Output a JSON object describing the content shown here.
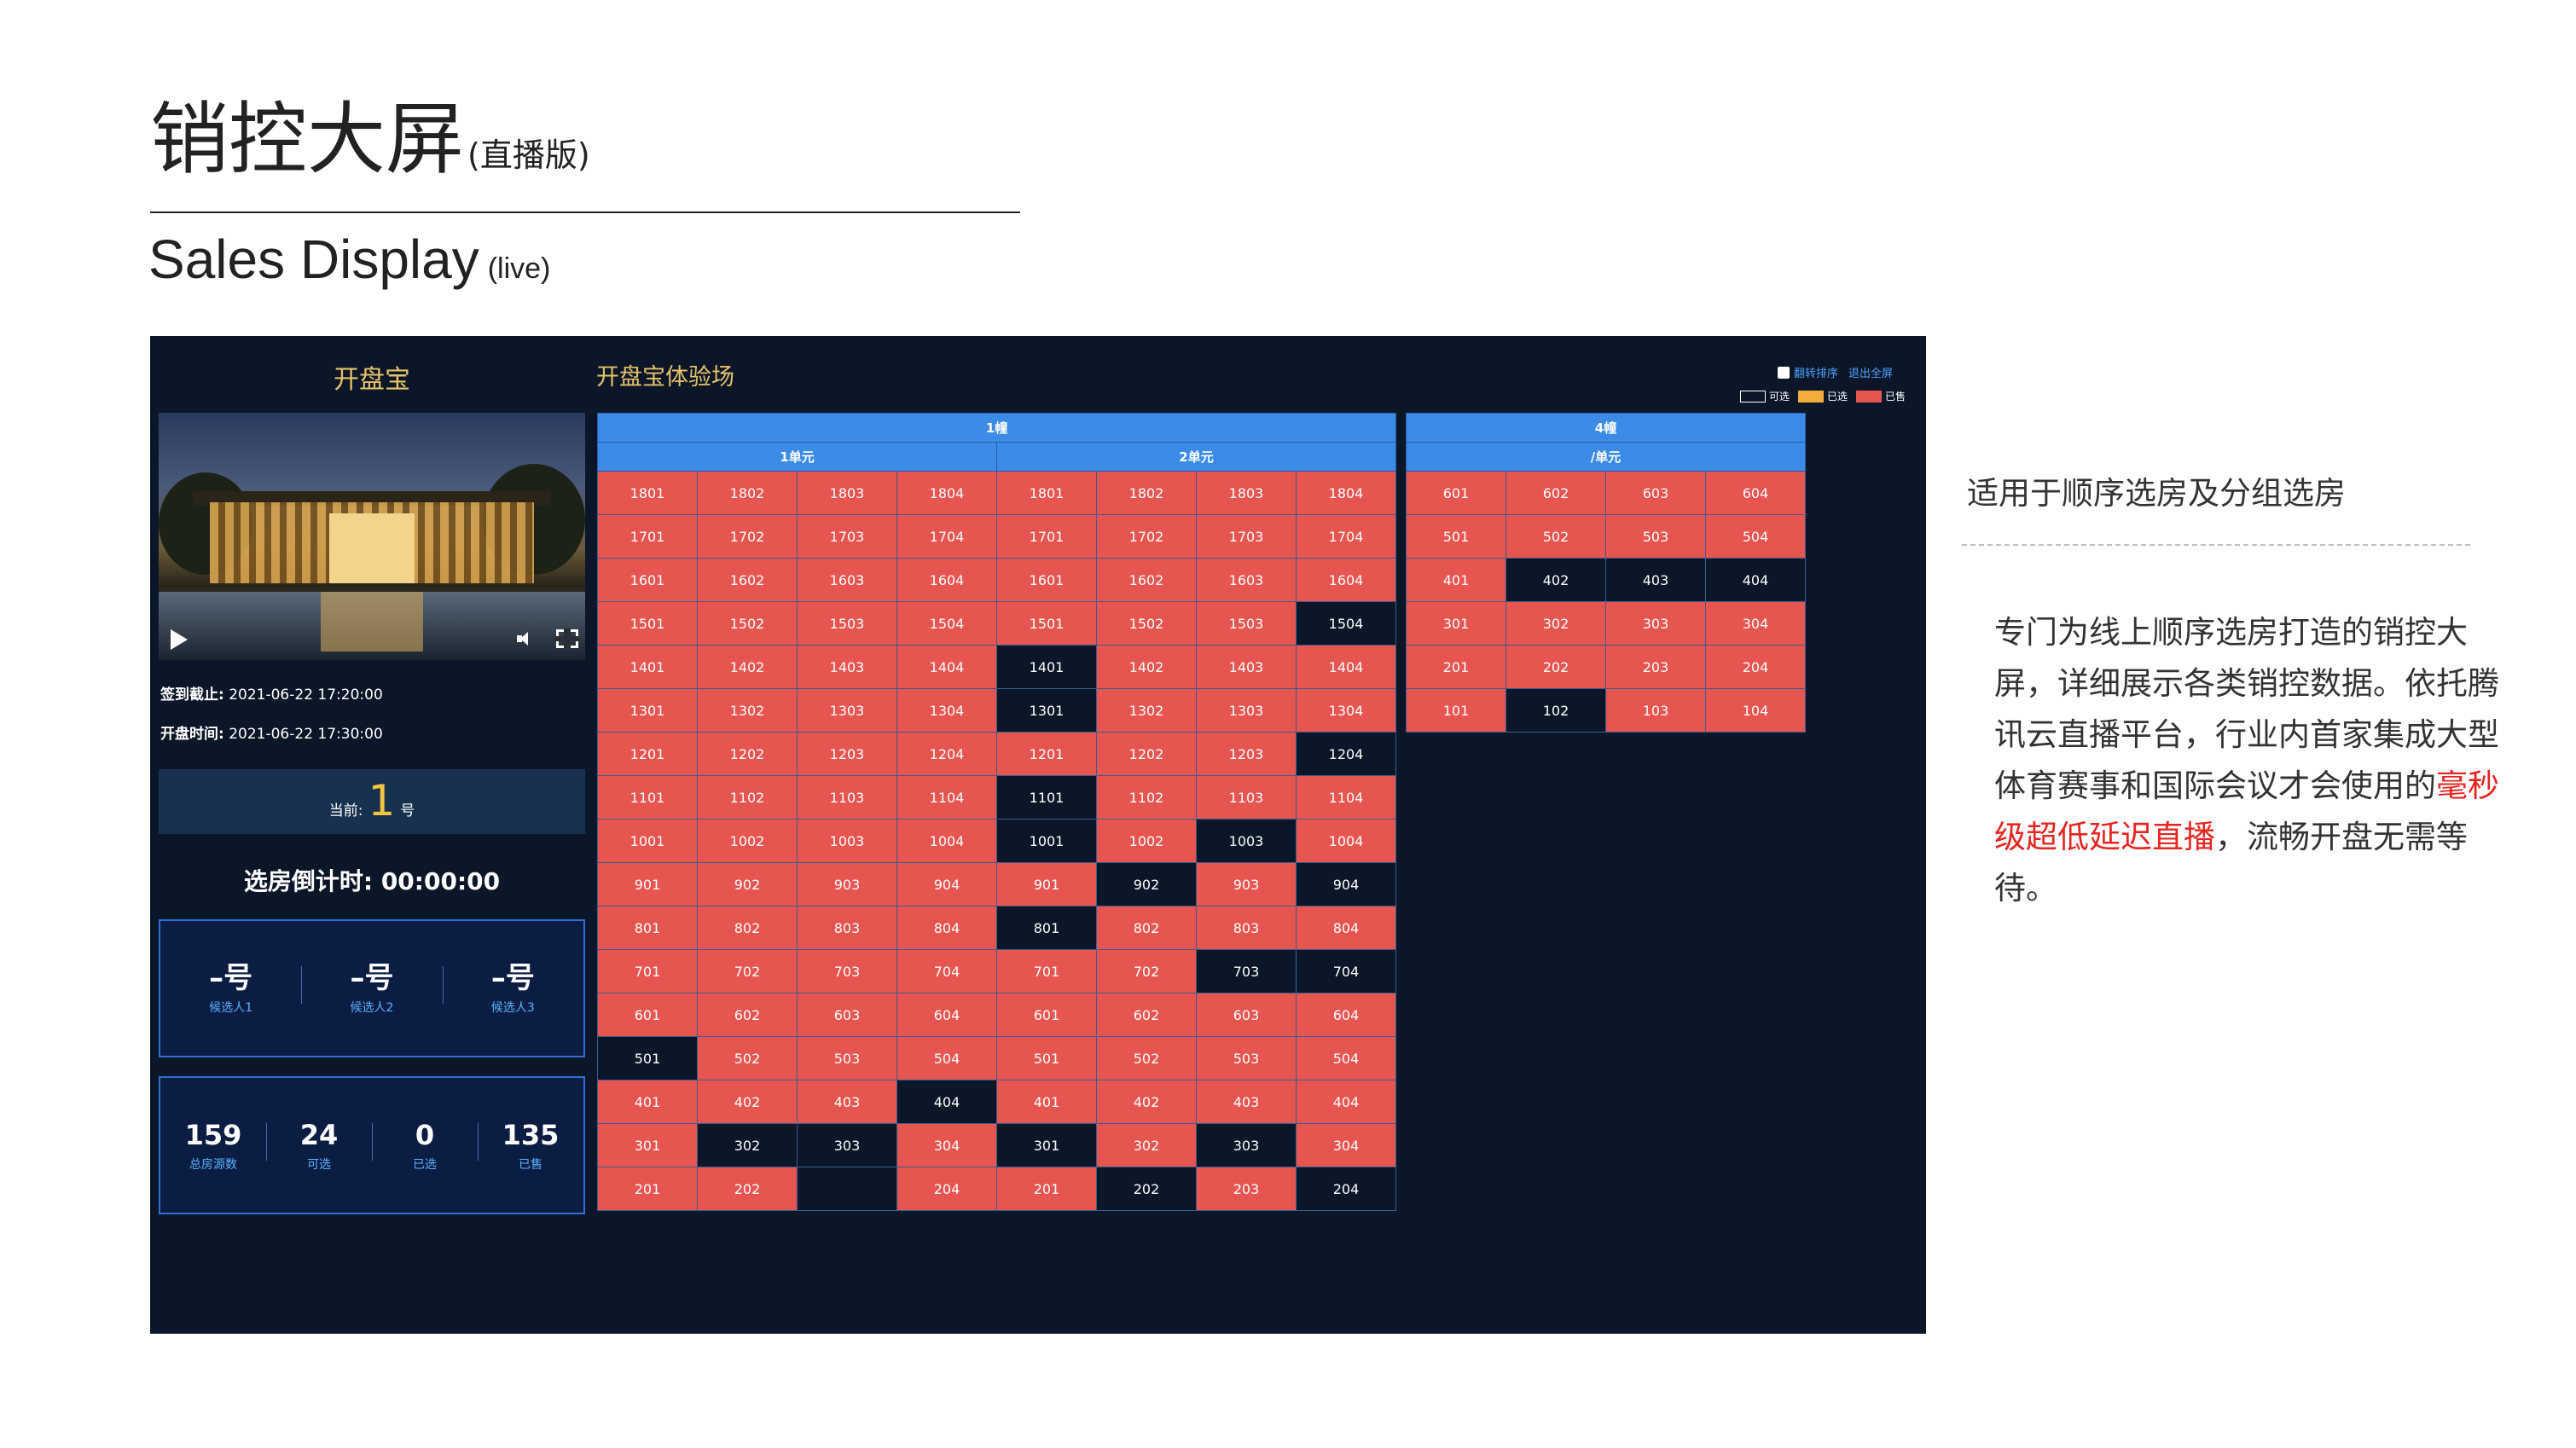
{
  "slide": {
    "title": "销控大屏",
    "title_suffix": "(直播版)",
    "subtitle_en": "Sales Display",
    "subtitle_en_suffix": "(live)"
  },
  "screen": {
    "brand": "开盘宝",
    "project_title": "开盘宝体验场",
    "controls": {
      "flip_sort": "翻转排序",
      "exit_fullscreen": "退出全屏"
    },
    "legend": [
      {
        "label": "可选",
        "color": "#0b1628"
      },
      {
        "label": "已选",
        "color": "#f2ad3a"
      },
      {
        "label": "已售",
        "color": "#e65550"
      }
    ],
    "checkin_label": "签到截止:",
    "checkin_time": "2021-06-22 17:20:00",
    "open_label": "开盘时间:",
    "open_time": "2021-06-22 17:30:00",
    "current_label": "当前:",
    "current_number": "1",
    "current_suffix": "号",
    "countdown_label": "选房倒计时:",
    "countdown_value": "00:00:00",
    "candidates": [
      {
        "value": "–号",
        "label": "候选人1"
      },
      {
        "value": "–号",
        "label": "候选人2"
      },
      {
        "value": "–号",
        "label": "候选人3"
      }
    ],
    "stats": [
      {
        "value": "159",
        "label": "总房源数"
      },
      {
        "value": "24",
        "label": "可选"
      },
      {
        "value": "0",
        "label": "已选"
      },
      {
        "value": "135",
        "label": "已售"
      }
    ],
    "buildings": [
      {
        "name": "1幢",
        "units": [
          {
            "name": "1单元",
            "rows": [
              [
                "1801",
                "1802",
                "1803",
                "1804"
              ],
              [
                "1701",
                "1702",
                "1703",
                "1704"
              ],
              [
                "1601",
                "1602",
                "1603",
                "1604"
              ],
              [
                "1501",
                "1502",
                "1503",
                "1504"
              ],
              [
                "1401",
                "1402",
                "1403",
                "1404"
              ],
              [
                "1301",
                "1302",
                "1303",
                "1304"
              ],
              [
                "1201",
                "1202",
                "1203",
                "1204"
              ],
              [
                "1101",
                "1102",
                "1103",
                "1104"
              ],
              [
                "1001",
                "1002",
                "1003",
                "1004"
              ],
              [
                "901",
                "902",
                "903",
                "904"
              ],
              [
                "801",
                "802",
                "803",
                "804"
              ],
              [
                "701",
                "702",
                "703",
                "704"
              ],
              [
                "601",
                "602",
                "603",
                "604"
              ],
              [
                "501",
                "502",
                "503",
                "504"
              ],
              [
                "401",
                "402",
                "403",
                "404"
              ],
              [
                "301",
                "302",
                "303",
                "304"
              ],
              [
                "201",
                "202",
                "",
                "204"
              ]
            ],
            "status": [
              "SSSS",
              "SSSS",
              "SSSS",
              "SSSS",
              "SSSS",
              "SSSS",
              "SSSS",
              "SSSS",
              "SSSS",
              "SSSS",
              "SSSS",
              "SSSS",
              "SSSS",
              "ASSS",
              "SSSA",
              "SAAS",
              "SSAS"
            ]
          },
          {
            "name": "2单元",
            "rows": [
              [
                "1801",
                "1802",
                "1803",
                "1804"
              ],
              [
                "1701",
                "1702",
                "1703",
                "1704"
              ],
              [
                "1601",
                "1602",
                "1603",
                "1604"
              ],
              [
                "1501",
                "1502",
                "1503",
                "1504"
              ],
              [
                "1401",
                "1402",
                "1403",
                "1404"
              ],
              [
                "1301",
                "1302",
                "1303",
                "1304"
              ],
              [
                "1201",
                "1202",
                "1203",
                "1204"
              ],
              [
                "1101",
                "1102",
                "1103",
                "1104"
              ],
              [
                "1001",
                "1002",
                "1003",
                "1004"
              ],
              [
                "901",
                "902",
                "903",
                "904"
              ],
              [
                "801",
                "802",
                "803",
                "804"
              ],
              [
                "701",
                "702",
                "703",
                "704"
              ],
              [
                "601",
                "602",
                "603",
                "604"
              ],
              [
                "501",
                "502",
                "503",
                "504"
              ],
              [
                "401",
                "402",
                "403",
                "404"
              ],
              [
                "301",
                "302",
                "303",
                "304"
              ],
              [
                "201",
                "202",
                "203",
                "204"
              ]
            ],
            "status": [
              "SSSS",
              "SSSS",
              "SSSS",
              "SSSA",
              "ASSS",
              "ASSS",
              "SSSA",
              "ASSS",
              "ASAS",
              "SASA",
              "ASSS",
              "SSAA",
              "SSSS",
              "SSSS",
              "SSSS",
              "ASAS",
              "SASA"
            ]
          }
        ]
      },
      {
        "name": "4幢",
        "units": [
          {
            "name": "/单元",
            "rows": [
              [
                "601",
                "602",
                "603",
                "604"
              ],
              [
                "501",
                "502",
                "503",
                "504"
              ],
              [
                "401",
                "402",
                "403",
                "404"
              ],
              [
                "301",
                "302",
                "303",
                "304"
              ],
              [
                "201",
                "202",
                "203",
                "204"
              ],
              [
                "101",
                "102",
                "103",
                "104"
              ]
            ],
            "status": [
              "SSSS",
              "SSSS",
              "SAAA",
              "SSSS",
              "SSSS",
              "SASS"
            ]
          }
        ]
      }
    ]
  },
  "right_panel": {
    "heading": "适用于顺序选房及分组选房",
    "body_before": "专门为线上顺序选房打造的销控大屏，详细展示各类销控数据。依托腾讯云直播平台，行业内首家集成大型体育赛事和国际会议才会使用的",
    "body_highlight": "毫秒级超低延迟直播",
    "body_after": "，流畅开盘无需等待。"
  }
}
